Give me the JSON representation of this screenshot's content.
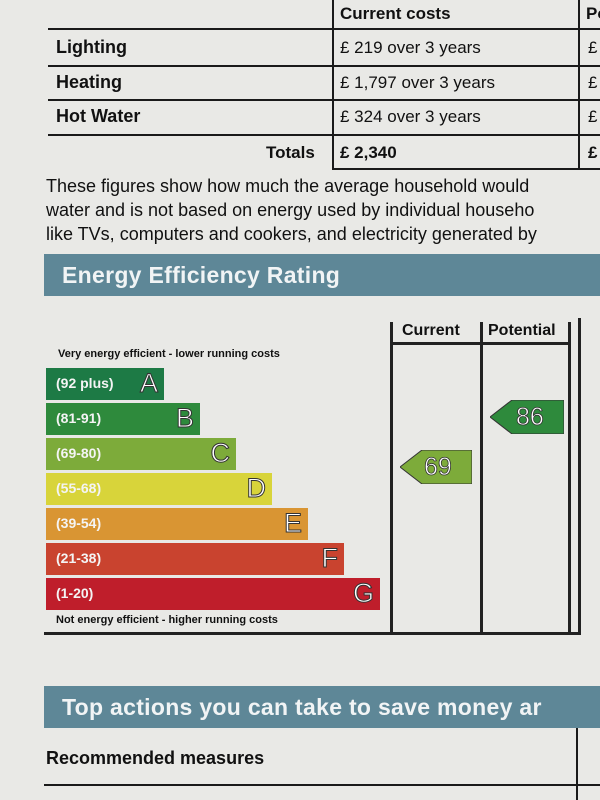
{
  "costs": {
    "headers": {
      "current": "Current costs",
      "potential_partial": "Po"
    },
    "rows": [
      {
        "label": "Lighting",
        "current": "£ 219 over 3 years",
        "potential_partial": "£"
      },
      {
        "label": "Heating",
        "current": "£ 1,797 over 3 years",
        "potential_partial": "£"
      },
      {
        "label": "Hot Water",
        "current": "£ 324 over 3 years",
        "potential_partial": "£"
      }
    ],
    "totals": {
      "label": "Totals",
      "current": "£ 2,340",
      "potential_partial": "£"
    }
  },
  "paragraph": [
    "These figures show how much the average household would",
    "water and is not based on energy used by individual househo",
    "like TVs, computers and cookers, and electricity generated by"
  ],
  "rating": {
    "title": "Energy Efficiency Rating",
    "col_current": "Current",
    "col_potential": "Potential",
    "top_note": "Very energy efficient - lower running costs",
    "bottom_note": "Not energy efficient - higher running costs",
    "bands": [
      {
        "range": "(92 plus)",
        "letter": "A",
        "color": "#1d7a45"
      },
      {
        "range": "(81-91)",
        "letter": "B",
        "color": "#2e8a3c"
      },
      {
        "range": "(69-80)",
        "letter": "C",
        "color": "#7dab3a"
      },
      {
        "range": "(55-68)",
        "letter": "D",
        "color": "#d8d43a"
      },
      {
        "range": "(39-54)",
        "letter": "E",
        "color": "#d99533"
      },
      {
        "range": "(21-38)",
        "letter": "F",
        "color": "#c9432f"
      },
      {
        "range": "(1-20)",
        "letter": "G",
        "color": "#bf1e2b"
      }
    ],
    "current": {
      "value": "69",
      "color": "#7dab3a"
    },
    "potential": {
      "value": "86",
      "color": "#2e8a3c"
    }
  },
  "actions": {
    "title": "Top actions you can take to save money ar",
    "recommended_label": "Recommended measures"
  }
}
